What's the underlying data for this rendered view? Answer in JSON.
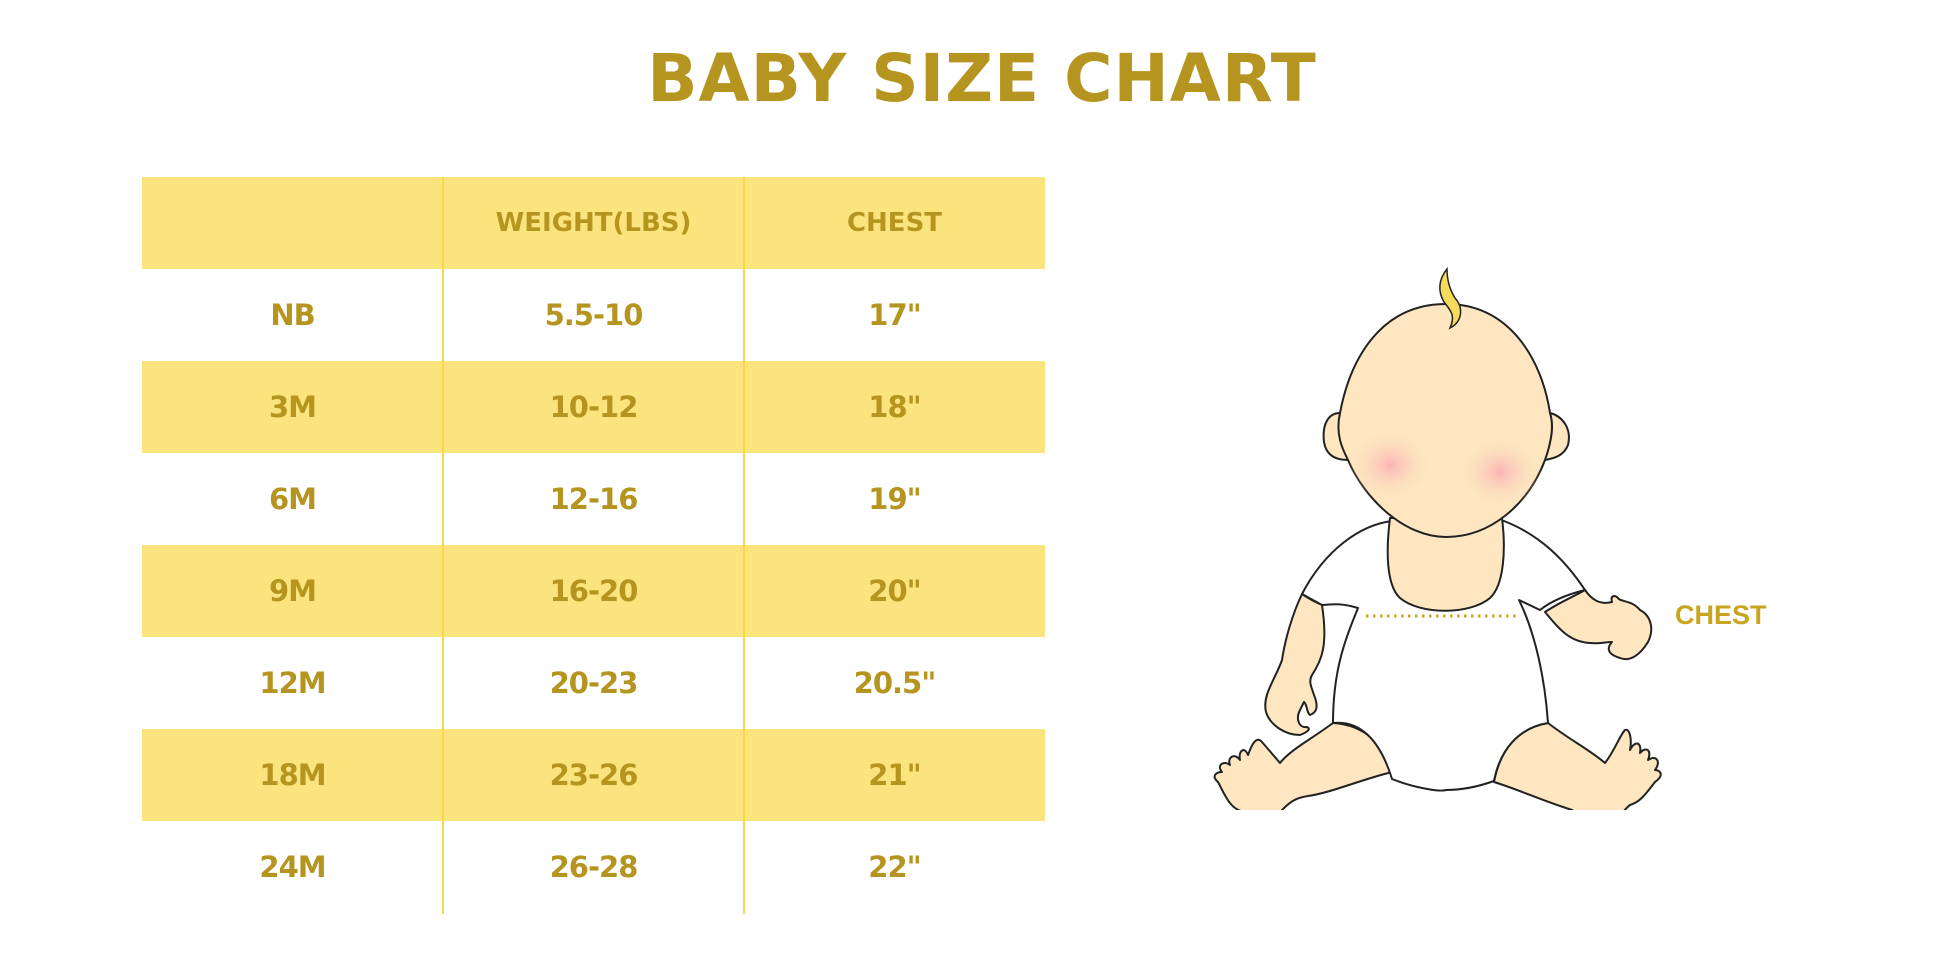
{
  "title": "BABY SIZE CHART",
  "table": {
    "headers": [
      "",
      "WEIGHT(LBS)",
      "CHEST"
    ],
    "rows": [
      [
        "NB",
        "5.5-10",
        "17\""
      ],
      [
        "3M",
        "10-12",
        "18\""
      ],
      [
        "6M",
        "12-16",
        "19\""
      ],
      [
        "9M",
        "16-20",
        "20\""
      ],
      [
        "12M",
        "20-23",
        "20.5\""
      ],
      [
        "18M",
        "23-26",
        "21\""
      ],
      [
        "24M",
        "26-28",
        "22\""
      ]
    ]
  },
  "illustration": {
    "label": "CHEST"
  },
  "colors": {
    "accent_text": "#b5951f",
    "row_fill": "#fbe47d",
    "divider": "#f6d84a",
    "skin": "#fde6c0"
  }
}
